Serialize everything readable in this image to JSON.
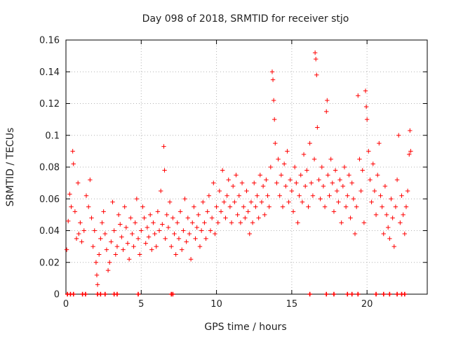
{
  "chart_data": {
    "type": "scatter",
    "title": "Day 098 of 2018, SRMTID for receiver stjo",
    "xlabel": "GPS time / hours",
    "ylabel": "SRMTID / TECUs",
    "xlim": [
      0,
      24
    ],
    "ylim": [
      0,
      0.16
    ],
    "x_ticks": [
      0,
      5,
      10,
      15,
      20
    ],
    "x_tick_labels": [
      "0",
      "5",
      "10",
      "15",
      "20"
    ],
    "y_ticks": [
      0,
      0.02,
      0.04,
      0.06,
      0.08,
      0.1,
      0.12,
      0.14,
      0.16
    ],
    "y_tick_labels": [
      "0",
      "0.02",
      "0.04",
      "0.06",
      "0.08",
      "0.1",
      "0.12",
      "0.14",
      "0.16"
    ],
    "grid": true,
    "marker": "plus",
    "color": "#ff0000",
    "series": [
      {
        "points": [
          [
            0.05,
            0.028
          ],
          [
            0.15,
            0.046
          ],
          [
            0.25,
            0.063
          ],
          [
            0.35,
            0.055
          ],
          [
            0.45,
            0.09
          ],
          [
            0.5,
            0.082
          ],
          [
            0.6,
            0.052
          ],
          [
            0.7,
            0.035
          ],
          [
            0.8,
            0.07
          ],
          [
            0.85,
            0.038
          ],
          [
            0.95,
            0.045
          ],
          [
            1.05,
            0.033
          ],
          [
            1.2,
            0.04
          ],
          [
            1.35,
            0.062
          ],
          [
            1.5,
            0.055
          ],
          [
            1.6,
            0.072
          ],
          [
            1.7,
            0.048
          ],
          [
            1.8,
            0.03
          ],
          [
            1.9,
            0.04
          ],
          [
            2.0,
            0.02
          ],
          [
            2.05,
            0.012
          ],
          [
            2.1,
            0.006
          ],
          [
            2.2,
            0.025
          ],
          [
            2.3,
            0.035
          ],
          [
            2.4,
            0.045
          ],
          [
            2.5,
            0.052
          ],
          [
            2.6,
            0.038
          ],
          [
            2.7,
            0.028
          ],
          [
            2.8,
            0.015
          ],
          [
            2.9,
            0.02
          ],
          [
            3.0,
            0.033
          ],
          [
            3.1,
            0.058
          ],
          [
            3.2,
            0.04
          ],
          [
            3.3,
            0.025
          ],
          [
            3.4,
            0.03
          ],
          [
            3.5,
            0.05
          ],
          [
            3.6,
            0.044
          ],
          [
            3.7,
            0.036
          ],
          [
            3.8,
            0.028
          ],
          [
            3.9,
            0.055
          ],
          [
            4.0,
            0.042
          ],
          [
            4.1,
            0.032
          ],
          [
            4.2,
            0.022
          ],
          [
            4.3,
            0.048
          ],
          [
            4.4,
            0.038
          ],
          [
            4.5,
            0.03
          ],
          [
            4.6,
            0.045
          ],
          [
            4.7,
            0.06
          ],
          [
            4.8,
            0.035
          ],
          [
            4.9,
            0.025
          ],
          [
            5.0,
            0.04
          ],
          [
            5.1,
            0.055
          ],
          [
            5.2,
            0.048
          ],
          [
            5.3,
            0.032
          ],
          [
            5.4,
            0.042
          ],
          [
            5.5,
            0.036
          ],
          [
            5.6,
            0.05
          ],
          [
            5.7,
            0.028
          ],
          [
            5.8,
            0.045
          ],
          [
            5.9,
            0.038
          ],
          [
            6.0,
            0.03
          ],
          [
            6.1,
            0.052
          ],
          [
            6.2,
            0.04
          ],
          [
            6.3,
            0.065
          ],
          [
            6.4,
            0.044
          ],
          [
            6.5,
            0.093
          ],
          [
            6.55,
            0.078
          ],
          [
            6.6,
            0.035
          ],
          [
            6.7,
            0.05
          ],
          [
            6.8,
            0.042
          ],
          [
            6.9,
            0.058
          ],
          [
            7.0,
            0.03
          ],
          [
            7.1,
            0.048
          ],
          [
            7.2,
            0.038
          ],
          [
            7.3,
            0.025
          ],
          [
            7.4,
            0.045
          ],
          [
            7.5,
            0.035
          ],
          [
            7.6,
            0.052
          ],
          [
            7.7,
            0.028
          ],
          [
            7.8,
            0.04
          ],
          [
            7.9,
            0.06
          ],
          [
            8.0,
            0.033
          ],
          [
            8.1,
            0.048
          ],
          [
            8.2,
            0.038
          ],
          [
            8.3,
            0.022
          ],
          [
            8.4,
            0.045
          ],
          [
            8.5,
            0.055
          ],
          [
            8.6,
            0.035
          ],
          [
            8.7,
            0.042
          ],
          [
            8.8,
            0.05
          ],
          [
            8.9,
            0.03
          ],
          [
            9.0,
            0.04
          ],
          [
            9.1,
            0.058
          ],
          [
            9.2,
            0.045
          ],
          [
            9.3,
            0.035
          ],
          [
            9.4,
            0.052
          ],
          [
            9.5,
            0.062
          ],
          [
            9.6,
            0.04
          ],
          [
            9.7,
            0.048
          ],
          [
            9.8,
            0.07
          ],
          [
            9.9,
            0.038
          ],
          [
            10.0,
            0.055
          ],
          [
            10.1,
            0.045
          ],
          [
            10.2,
            0.065
          ],
          [
            10.3,
            0.052
          ],
          [
            10.4,
            0.078
          ],
          [
            10.5,
            0.058
          ],
          [
            10.6,
            0.048
          ],
          [
            10.7,
            0.062
          ],
          [
            10.8,
            0.072
          ],
          [
            10.9,
            0.055
          ],
          [
            11.0,
            0.045
          ],
          [
            11.1,
            0.068
          ],
          [
            11.2,
            0.058
          ],
          [
            11.3,
            0.075
          ],
          [
            11.4,
            0.05
          ],
          [
            11.5,
            0.062
          ],
          [
            11.6,
            0.045
          ],
          [
            11.7,
            0.07
          ],
          [
            11.8,
            0.055
          ],
          [
            11.9,
            0.048
          ],
          [
            12.0,
            0.065
          ],
          [
            12.1,
            0.052
          ],
          [
            12.2,
            0.038
          ],
          [
            12.3,
            0.058
          ],
          [
            12.4,
            0.045
          ],
          [
            12.5,
            0.07
          ],
          [
            12.6,
            0.055
          ],
          [
            12.7,
            0.062
          ],
          [
            12.8,
            0.048
          ],
          [
            12.9,
            0.075
          ],
          [
            13.0,
            0.058
          ],
          [
            13.1,
            0.068
          ],
          [
            13.2,
            0.05
          ],
          [
            13.3,
            0.072
          ],
          [
            13.4,
            0.062
          ],
          [
            13.5,
            0.055
          ],
          [
            13.6,
            0.08
          ],
          [
            13.7,
            0.14
          ],
          [
            13.75,
            0.135
          ],
          [
            13.8,
            0.122
          ],
          [
            13.85,
            0.11
          ],
          [
            13.9,
            0.095
          ],
          [
            14.0,
            0.07
          ],
          [
            14.1,
            0.085
          ],
          [
            14.2,
            0.062
          ],
          [
            14.3,
            0.075
          ],
          [
            14.4,
            0.055
          ],
          [
            14.5,
            0.082
          ],
          [
            14.6,
            0.068
          ],
          [
            14.7,
            0.09
          ],
          [
            14.8,
            0.058
          ],
          [
            14.9,
            0.072
          ],
          [
            15.0,
            0.065
          ],
          [
            15.1,
            0.052
          ],
          [
            15.2,
            0.08
          ],
          [
            15.3,
            0.07
          ],
          [
            15.4,
            0.045
          ],
          [
            15.5,
            0.062
          ],
          [
            15.6,
            0.075
          ],
          [
            15.7,
            0.058
          ],
          [
            15.8,
            0.088
          ],
          [
            15.9,
            0.068
          ],
          [
            16.0,
            0.078
          ],
          [
            16.1,
            0.055
          ],
          [
            16.2,
            0.095
          ],
          [
            16.3,
            0.07
          ],
          [
            16.4,
            0.062
          ],
          [
            16.5,
            0.085
          ],
          [
            16.55,
            0.152
          ],
          [
            16.6,
            0.148
          ],
          [
            16.65,
            0.138
          ],
          [
            16.7,
            0.105
          ],
          [
            16.8,
            0.072
          ],
          [
            16.9,
            0.06
          ],
          [
            17.0,
            0.08
          ],
          [
            17.1,
            0.068
          ],
          [
            17.2,
            0.055
          ],
          [
            17.3,
            0.115
          ],
          [
            17.35,
            0.122
          ],
          [
            17.4,
            0.075
          ],
          [
            17.5,
            0.062
          ],
          [
            17.6,
            0.085
          ],
          [
            17.7,
            0.07
          ],
          [
            17.8,
            0.052
          ],
          [
            17.9,
            0.078
          ],
          [
            18.0,
            0.065
          ],
          [
            18.1,
            0.058
          ],
          [
            18.2,
            0.072
          ],
          [
            18.3,
            0.045
          ],
          [
            18.4,
            0.068
          ],
          [
            18.5,
            0.08
          ],
          [
            18.6,
            0.055
          ],
          [
            18.7,
            0.062
          ],
          [
            18.8,
            0.075
          ],
          [
            18.9,
            0.048
          ],
          [
            19.0,
            0.07
          ],
          [
            19.1,
            0.06
          ],
          [
            19.2,
            0.038
          ],
          [
            19.3,
            0.055
          ],
          [
            19.4,
            0.125
          ],
          [
            19.5,
            0.085
          ],
          [
            19.6,
            0.065
          ],
          [
            19.7,
            0.078
          ],
          [
            19.8,
            0.045
          ],
          [
            19.9,
            0.128
          ],
          [
            19.95,
            0.118
          ],
          [
            20.0,
            0.11
          ],
          [
            20.1,
            0.09
          ],
          [
            20.2,
            0.072
          ],
          [
            20.3,
            0.058
          ],
          [
            20.4,
            0.082
          ],
          [
            20.5,
            0.065
          ],
          [
            20.6,
            0.05
          ],
          [
            20.7,
            0.075
          ],
          [
            20.8,
            0.095
          ],
          [
            20.9,
            0.062
          ],
          [
            21.0,
            0.055
          ],
          [
            21.1,
            0.038
          ],
          [
            21.2,
            0.068
          ],
          [
            21.3,
            0.05
          ],
          [
            21.4,
            0.042
          ],
          [
            21.5,
            0.035
          ],
          [
            21.6,
            0.06
          ],
          [
            21.7,
            0.048
          ],
          [
            21.8,
            0.03
          ],
          [
            21.9,
            0.055
          ],
          [
            22.0,
            0.072
          ],
          [
            22.1,
            0.1
          ],
          [
            22.2,
            0.045
          ],
          [
            22.3,
            0.062
          ],
          [
            22.4,
            0.05
          ],
          [
            22.5,
            0.038
          ],
          [
            22.6,
            0.055
          ],
          [
            22.7,
            0.065
          ],
          [
            22.8,
            0.088
          ],
          [
            22.85,
            0.103
          ],
          [
            22.9,
            0.09
          ]
        ]
      }
    ],
    "zero_points_x": [
      0.1,
      0.3,
      0.5,
      1.1,
      1.3,
      2.1,
      2.3,
      2.6,
      3.2,
      3.4,
      4.8,
      7.0,
      7.1,
      16.2,
      17.3,
      17.8,
      18.7,
      19.0,
      19.4,
      20.6,
      21.1,
      21.5,
      22.0,
      22.3,
      22.5
    ]
  }
}
